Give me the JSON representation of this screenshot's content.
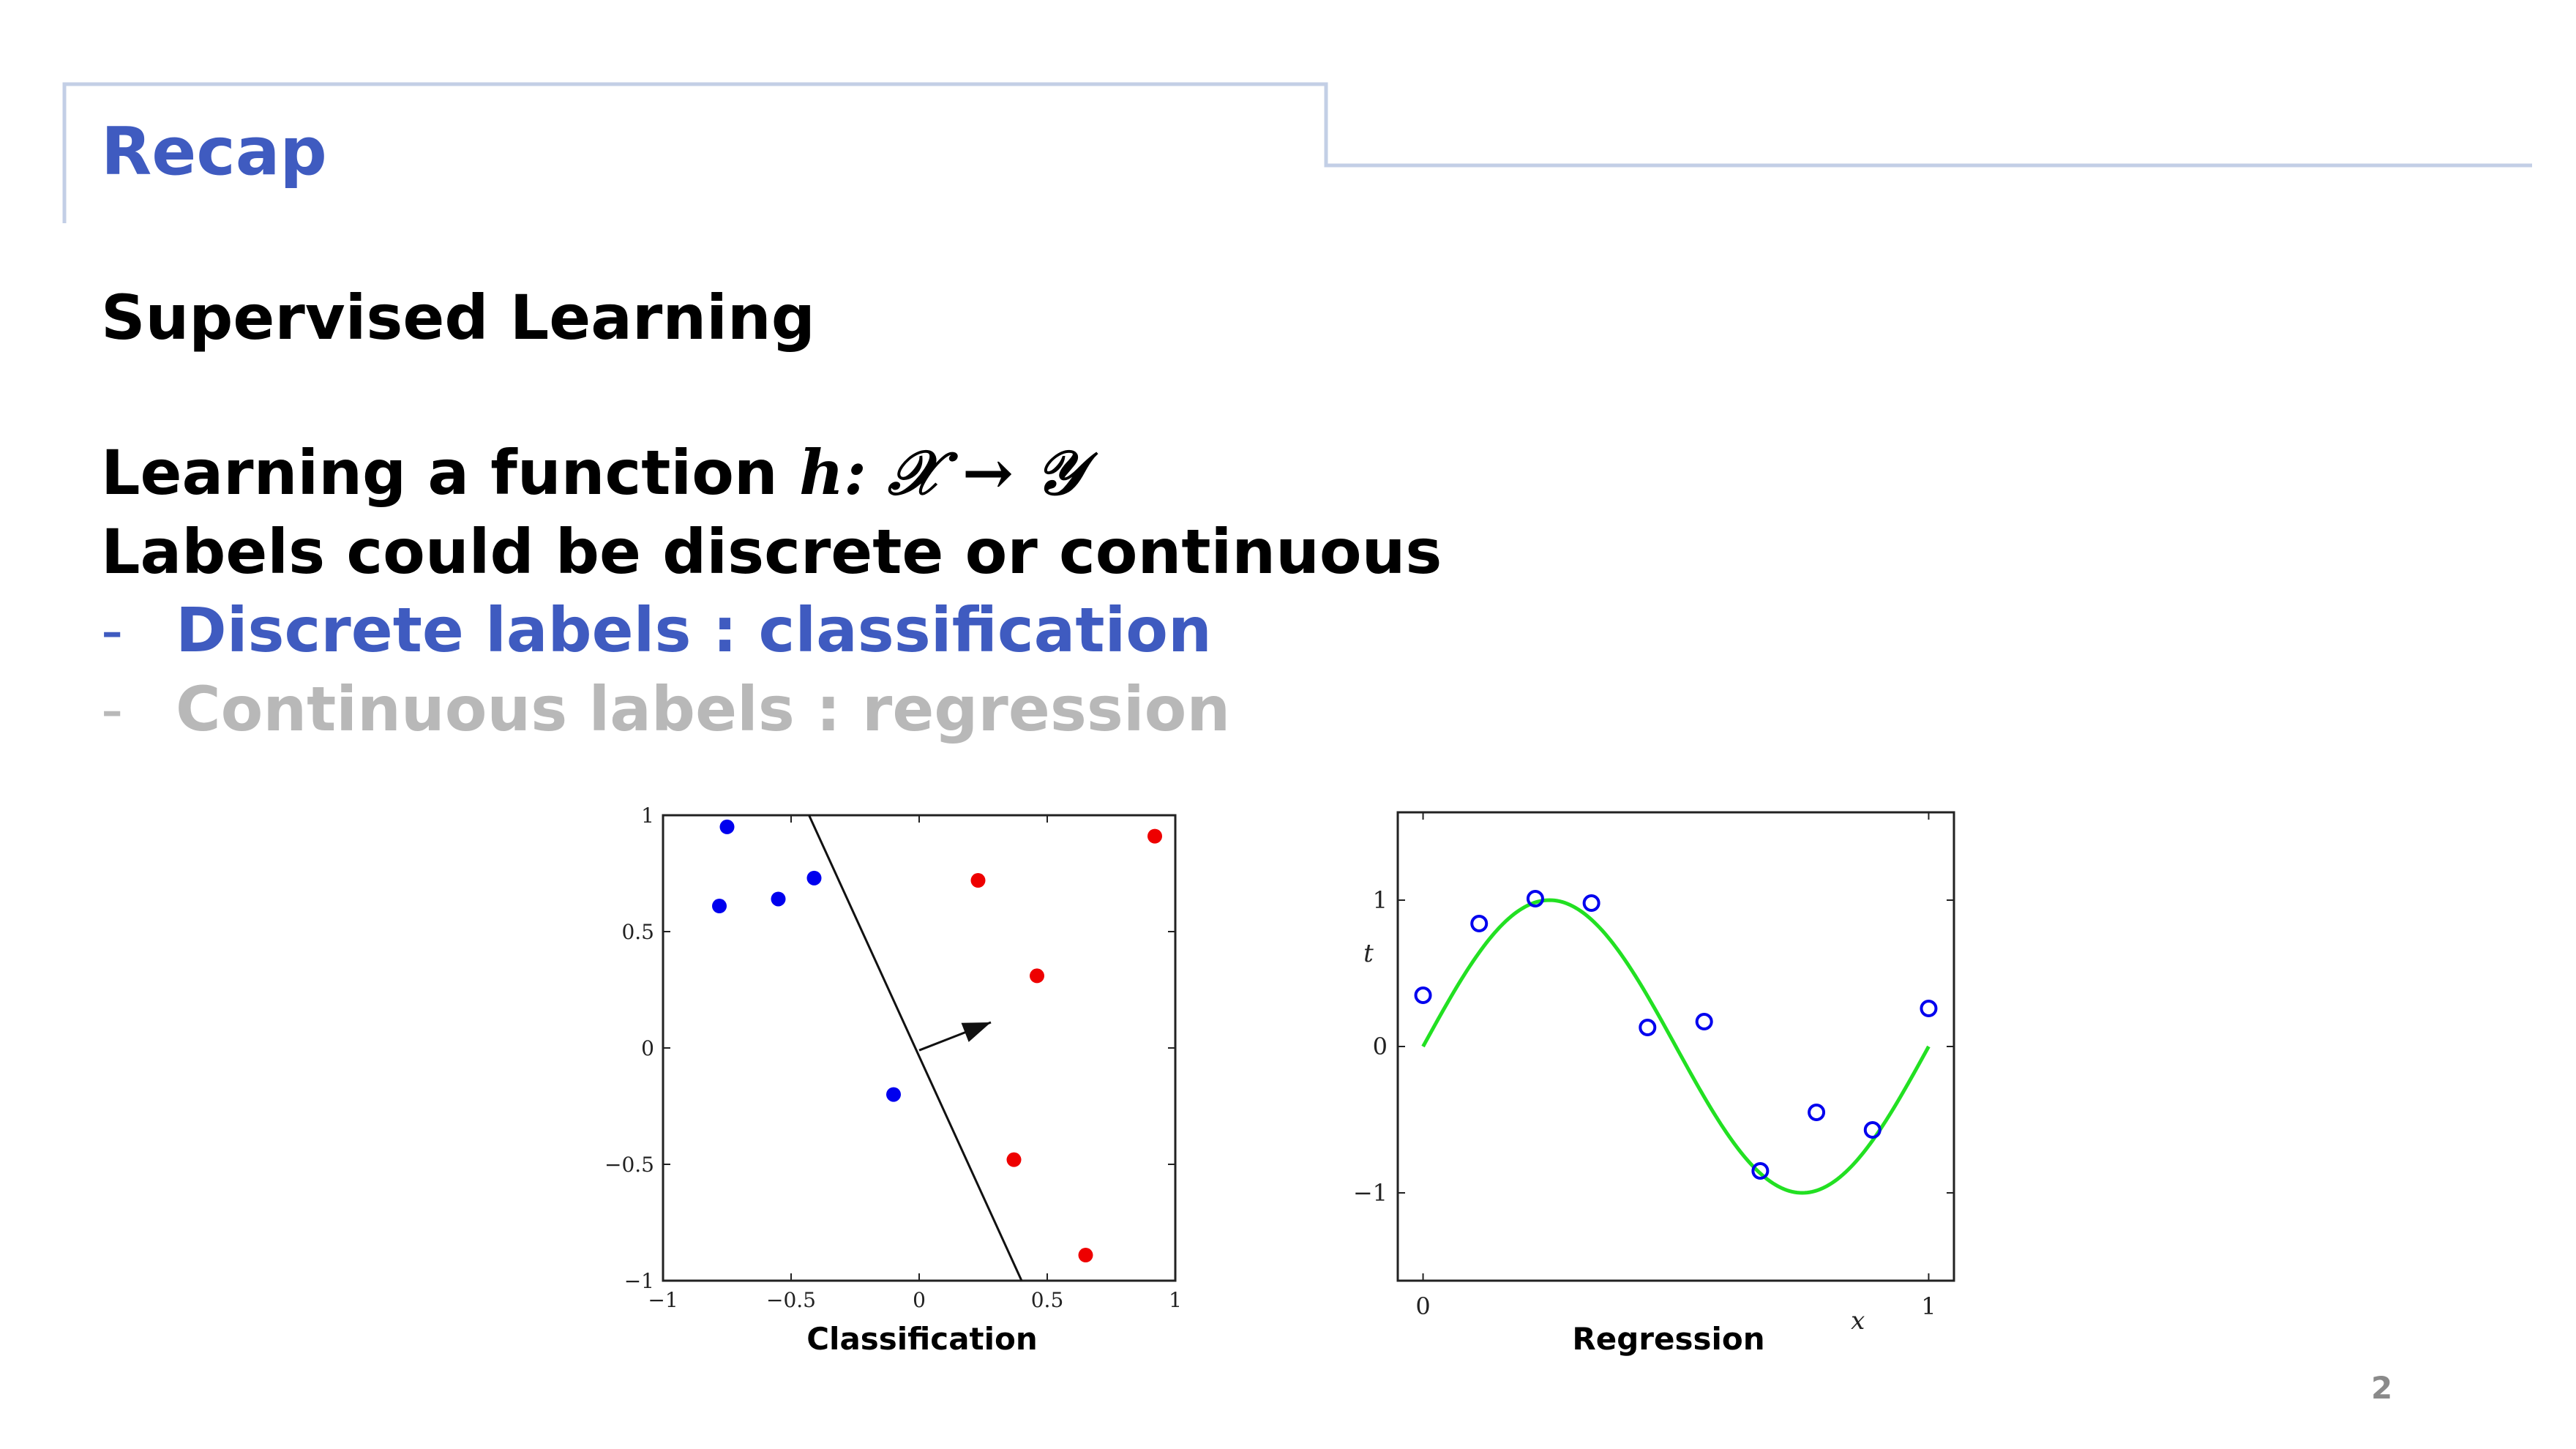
{
  "header": {
    "title": "Recap"
  },
  "content": {
    "heading": "Supervised Learning",
    "function_text": "Learning a function",
    "function_math": "h: 𝒳 → 𝒴",
    "labels_text": "Labels could be discrete or continuous",
    "bullets": [
      {
        "dash": "-",
        "text": "Discrete labels : classification"
      },
      {
        "dash": "-",
        "text": "Continuous labels : regression"
      }
    ]
  },
  "colors": {
    "accent": "#3f5bc0",
    "muted": "#b8b8b8",
    "frame": "#c3cfe6",
    "blue": "#0000ee",
    "red": "#ee0000",
    "green": "#22e022"
  },
  "chart_data": [
    {
      "type": "scatter",
      "title": "",
      "caption": "Classification",
      "xlim": [
        -1,
        1
      ],
      "ylim": [
        -1,
        1
      ],
      "xticks": [
        "−1",
        "−0.5",
        "0",
        "0.5",
        "1"
      ],
      "yticks": [
        "−1",
        "−0.5",
        "0",
        "0.5",
        "1"
      ],
      "series": [
        {
          "color": "blue",
          "points": [
            [
              -0.75,
              0.95
            ],
            [
              -0.78,
              0.61
            ],
            [
              -0.55,
              0.64
            ],
            [
              -0.41,
              0.73
            ],
            [
              -0.1,
              -0.2
            ]
          ]
        },
        {
          "color": "red",
          "points": [
            [
              0.23,
              0.72
            ],
            [
              0.46,
              0.31
            ],
            [
              0.92,
              0.91
            ],
            [
              0.37,
              -0.48
            ],
            [
              0.65,
              -0.89
            ]
          ]
        }
      ],
      "boundary": [
        [
          -0.43,
          1.0
        ],
        [
          0.4,
          -1.0
        ]
      ],
      "normal_arrow": [
        [
          0.0,
          -0.01
        ],
        [
          0.28,
          0.11
        ]
      ]
    },
    {
      "type": "scatter",
      "title": "",
      "caption": "Regression",
      "xlabel": "x",
      "ylabel": "t",
      "xlim": [
        -0.05,
        1.05
      ],
      "ylim": [
        -1.6,
        1.6
      ],
      "xticks": [
        "0",
        "1"
      ],
      "yticks": [
        "−1",
        "0",
        "1"
      ],
      "points": [
        [
          0.0,
          0.35
        ],
        [
          0.111,
          0.84
        ],
        [
          0.222,
          1.01
        ],
        [
          0.333,
          0.98
        ],
        [
          0.444,
          0.13
        ],
        [
          0.556,
          0.17
        ],
        [
          0.667,
          -0.85
        ],
        [
          0.778,
          -0.45
        ],
        [
          0.889,
          -0.57
        ],
        [
          1.0,
          0.26
        ]
      ],
      "curve": "sin(2πx)"
    }
  ],
  "page": {
    "number": "2"
  }
}
